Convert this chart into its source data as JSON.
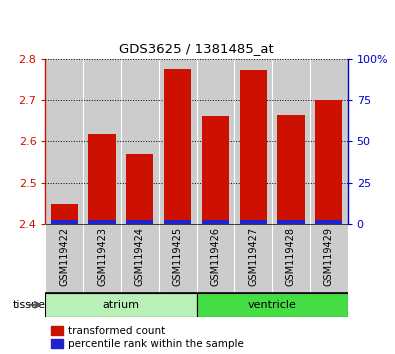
{
  "title": "GDS3625 / 1381485_at",
  "samples": [
    "GSM119422",
    "GSM119423",
    "GSM119424",
    "GSM119425",
    "GSM119426",
    "GSM119427",
    "GSM119428",
    "GSM119429"
  ],
  "red_values": [
    2.447,
    2.617,
    2.57,
    2.775,
    2.662,
    2.773,
    2.663,
    2.7
  ],
  "blue_values": [
    0.01,
    0.01,
    0.01,
    0.01,
    0.01,
    0.01,
    0.01,
    0.01
  ],
  "baseline": 2.4,
  "ylim_left": [
    2.4,
    2.8
  ],
  "ylim_right": [
    0,
    100
  ],
  "yticks_left": [
    2.4,
    2.5,
    2.6,
    2.7,
    2.8
  ],
  "yticks_right": [
    0,
    25,
    50,
    75,
    100
  ],
  "tissue_groups": [
    {
      "label": "atrium",
      "start": 0,
      "end": 4,
      "color": "#b8f0b8"
    },
    {
      "label": "ventricle",
      "start": 4,
      "end": 8,
      "color": "#44dd44"
    }
  ],
  "red_color": "#cc1100",
  "blue_color": "#2222cc",
  "bar_bg": "#cccccc",
  "legend": [
    "transformed count",
    "percentile rank within the sample"
  ],
  "tissue_label": "tissue",
  "left_axis_color": "#cc1100",
  "right_axis_color": "#0000cc",
  "title_color": "#000000"
}
